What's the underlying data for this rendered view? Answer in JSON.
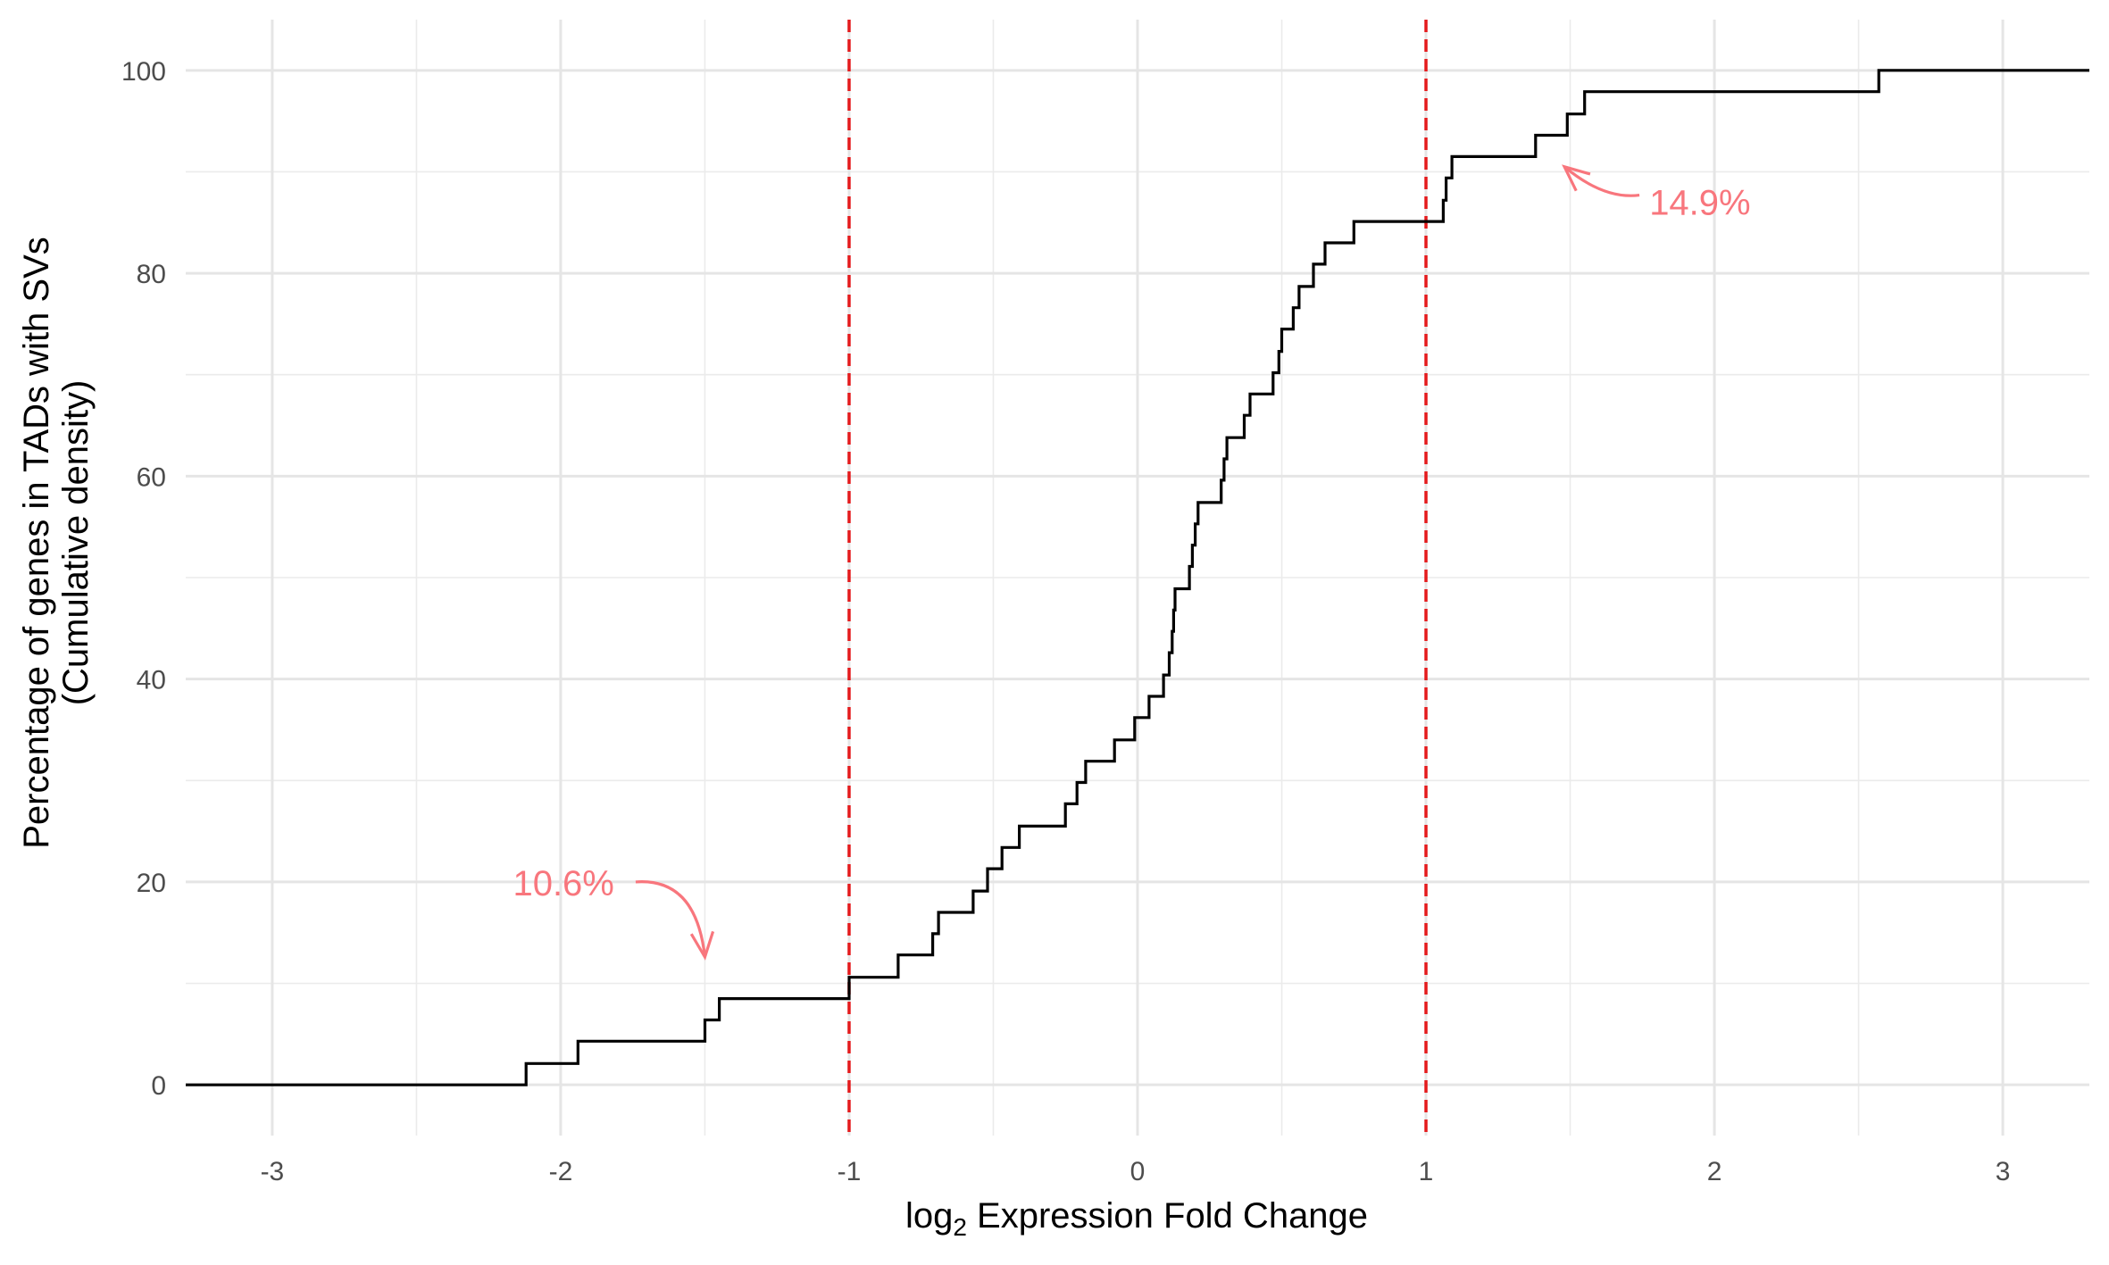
{
  "chart_data": {
    "type": "step",
    "xlabel_prefix": "log",
    "xlabel_sub": "2",
    "xlabel_rest": " Expression Fold Change",
    "ylabel_line1": "Percentage of genes in TADs with SVs",
    "ylabel_line2": "(Cumulative density)",
    "xlim": [
      -3.3,
      3.3
    ],
    "ylim": [
      -5,
      105
    ],
    "x_ticks": [
      -3,
      -2,
      -1,
      0,
      1,
      2,
      3
    ],
    "x_tick_labels": [
      "-3",
      "-2",
      "-1",
      "0",
      "1",
      "2",
      "3"
    ],
    "y_ticks": [
      0,
      20,
      40,
      60,
      80,
      100
    ],
    "y_tick_labels": [
      "0",
      "20",
      "40",
      "60",
      "80",
      "100"
    ],
    "grid": true,
    "vlines": [
      -1,
      1
    ],
    "vline_color": "#e41a1c",
    "line_color": "#000000",
    "annotation_color": "#f8767d",
    "annotations": [
      {
        "label": "10.6%",
        "x": -1.99,
        "y": 19.9,
        "arrow_from": [
          -1.74,
          20.0
        ],
        "arrow_to": [
          -1.5,
          12.6
        ]
      },
      {
        "label": "14.9%",
        "x": 1.95,
        "y": 87.0,
        "arrow_from": [
          1.74,
          87.7
        ],
        "arrow_to": [
          1.48,
          90.5
        ]
      }
    ],
    "steps": [
      [
        -3.3,
        0
      ],
      [
        -2.12,
        0
      ],
      [
        -2.12,
        2.1
      ],
      [
        -1.94,
        2.1
      ],
      [
        -1.94,
        4.3
      ],
      [
        -1.5,
        4.3
      ],
      [
        -1.5,
        6.4
      ],
      [
        -1.45,
        6.4
      ],
      [
        -1.45,
        8.5
      ],
      [
        -1.0,
        8.5
      ],
      [
        -1.0,
        10.6
      ],
      [
        -0.83,
        10.6
      ],
      [
        -0.83,
        12.8
      ],
      [
        -0.71,
        12.8
      ],
      [
        -0.71,
        14.9
      ],
      [
        -0.69,
        14.9
      ],
      [
        -0.69,
        17.0
      ],
      [
        -0.57,
        17.0
      ],
      [
        -0.57,
        19.1
      ],
      [
        -0.52,
        19.1
      ],
      [
        -0.52,
        21.3
      ],
      [
        -0.47,
        21.3
      ],
      [
        -0.47,
        23.4
      ],
      [
        -0.41,
        23.4
      ],
      [
        -0.41,
        25.5
      ],
      [
        -0.25,
        25.5
      ],
      [
        -0.25,
        27.7
      ],
      [
        -0.21,
        27.7
      ],
      [
        -0.21,
        29.8
      ],
      [
        -0.18,
        29.8
      ],
      [
        -0.18,
        31.9
      ],
      [
        -0.08,
        31.9
      ],
      [
        -0.08,
        34.0
      ],
      [
        -0.01,
        34.0
      ],
      [
        -0.01,
        36.2
      ],
      [
        0.04,
        36.2
      ],
      [
        0.04,
        38.3
      ],
      [
        0.09,
        38.3
      ],
      [
        0.09,
        40.4
      ],
      [
        0.11,
        40.4
      ],
      [
        0.11,
        42.6
      ],
      [
        0.12,
        42.6
      ],
      [
        0.12,
        44.7
      ],
      [
        0.125,
        44.7
      ],
      [
        0.125,
        46.8
      ],
      [
        0.13,
        46.8
      ],
      [
        0.13,
        48.9
      ],
      [
        0.18,
        48.9
      ],
      [
        0.18,
        51.1
      ],
      [
        0.19,
        51.1
      ],
      [
        0.19,
        53.2
      ],
      [
        0.2,
        53.2
      ],
      [
        0.2,
        55.3
      ],
      [
        0.21,
        55.3
      ],
      [
        0.21,
        57.4
      ],
      [
        0.29,
        57.4
      ],
      [
        0.29,
        59.6
      ],
      [
        0.3,
        59.6
      ],
      [
        0.3,
        61.7
      ],
      [
        0.31,
        61.7
      ],
      [
        0.31,
        63.8
      ],
      [
        0.37,
        63.8
      ],
      [
        0.37,
        66.0
      ],
      [
        0.39,
        66.0
      ],
      [
        0.39,
        68.1
      ],
      [
        0.47,
        68.1
      ],
      [
        0.47,
        70.2
      ],
      [
        0.49,
        70.2
      ],
      [
        0.49,
        72.3
      ],
      [
        0.5,
        72.3
      ],
      [
        0.5,
        74.5
      ],
      [
        0.54,
        74.5
      ],
      [
        0.54,
        76.6
      ],
      [
        0.56,
        76.6
      ],
      [
        0.56,
        78.7
      ],
      [
        0.61,
        78.7
      ],
      [
        0.61,
        80.9
      ],
      [
        0.65,
        80.9
      ],
      [
        0.65,
        83.0
      ],
      [
        0.75,
        83.0
      ],
      [
        0.75,
        85.1
      ],
      [
        1.06,
        85.1
      ],
      [
        1.06,
        87.2
      ],
      [
        1.07,
        87.2
      ],
      [
        1.07,
        89.4
      ],
      [
        1.09,
        89.4
      ],
      [
        1.09,
        91.5
      ],
      [
        1.38,
        91.5
      ],
      [
        1.38,
        93.6
      ],
      [
        1.49,
        93.6
      ],
      [
        1.49,
        95.7
      ],
      [
        1.55,
        95.7
      ],
      [
        1.55,
        97.9
      ],
      [
        2.57,
        97.9
      ],
      [
        2.57,
        100
      ],
      [
        3.3,
        100
      ]
    ]
  }
}
